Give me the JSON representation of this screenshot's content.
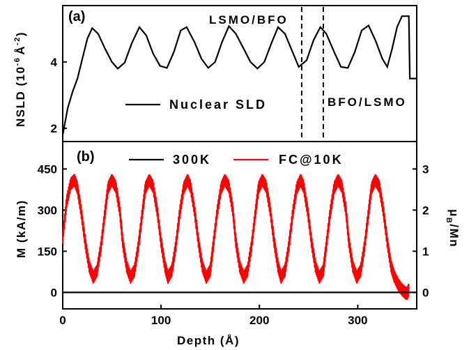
{
  "chart_data": [
    {
      "type": "line",
      "panel_label": "(a)",
      "ylabel": "NSLD (10",
      "ylabel_sup": "-6",
      "ylabel_unit": "Å",
      "ylabel_sup2": "-2",
      "ylabel_close": ")",
      "xlim": [
        0,
        360
      ],
      "ylim": [
        1.6,
        5.7
      ],
      "yticks": [
        "2",
        "4"
      ],
      "ytick_values": [
        2,
        4
      ],
      "legend_label": "Nuclear SLD",
      "annotations": [
        "LSMO/BFO",
        "BFO/LSMO"
      ],
      "interface_lines_x": [
        243,
        265
      ],
      "series": [
        {
          "name": "Nuclear SLD",
          "color": "#000000",
          "x": [
            0,
            5,
            10,
            15,
            20,
            25,
            30,
            36,
            43,
            50,
            56,
            63,
            70,
            78,
            85,
            92,
            99,
            106,
            113,
            120,
            126,
            134,
            141,
            148,
            155,
            162,
            169,
            176,
            184,
            191,
            198,
            205,
            212,
            219,
            226,
            233,
            240,
            248,
            255,
            262,
            268,
            276,
            283,
            290,
            297,
            304,
            311,
            318,
            325,
            330,
            335,
            340,
            345,
            352,
            353,
            354,
            360
          ],
          "y": [
            1.8,
            2.6,
            3.1,
            3.5,
            4.1,
            4.7,
            5.02,
            4.85,
            4.4,
            4.0,
            3.8,
            3.98,
            4.55,
            5.05,
            4.8,
            4.25,
            3.88,
            3.82,
            4.3,
            4.95,
            5.05,
            4.6,
            4.1,
            3.82,
            4.0,
            4.6,
            5.08,
            4.85,
            4.4,
            4.0,
            3.8,
            4.0,
            4.55,
            5.05,
            4.85,
            4.35,
            3.85,
            4.05,
            4.65,
            5.05,
            4.85,
            4.3,
            3.85,
            3.82,
            4.3,
            4.95,
            5.1,
            4.65,
            4.1,
            3.85,
            4.4,
            5.05,
            5.38,
            5.38,
            3.5,
            3.5,
            3.5
          ]
        }
      ]
    },
    {
      "type": "line",
      "panel_label": "(b)",
      "xlabel": "Depth (Å)",
      "ylabel": "M (kA/m)",
      "ylabel_right": "μB/Mn",
      "ylabel_right_main": "μ",
      "ylabel_right_sub": "B",
      "ylabel_right_rest": "/Mn",
      "xlim": [
        0,
        360
      ],
      "ylim": [
        -60,
        550
      ],
      "xticks": [
        "0",
        "100",
        "200",
        "300"
      ],
      "xtick_values": [
        0,
        100,
        200,
        300
      ],
      "yticks": [
        "0",
        "150",
        "300",
        "450"
      ],
      "ytick_values": [
        0,
        150,
        300,
        450
      ],
      "yticks_right": [
        "0",
        "1",
        "2",
        "3"
      ],
      "ytick_right_values": [
        0,
        150,
        300,
        450
      ],
      "series": [
        {
          "name": "300K",
          "color": "#000000",
          "x": [
            0,
            360
          ],
          "y": [
            0,
            0
          ]
        },
        {
          "name": "FC@10K",
          "color": "#ff0000",
          "x": [
            0,
            4,
            8,
            12,
            15,
            19,
            23,
            27,
            31,
            35,
            39,
            43,
            46,
            50,
            54,
            58,
            61,
            65,
            69,
            73,
            77,
            81,
            84,
            88,
            92,
            96,
            100,
            104,
            107,
            111,
            115,
            119,
            123,
            127,
            130,
            134,
            138,
            142,
            146,
            150,
            153,
            157,
            161,
            165,
            169,
            173,
            176,
            180,
            184,
            188,
            192,
            196,
            199,
            203,
            207,
            211,
            215,
            219,
            222,
            226,
            230,
            234,
            238,
            242,
            245,
            249,
            253,
            257,
            261,
            265,
            268,
            272,
            276,
            280,
            284,
            288,
            291,
            295,
            299,
            303,
            307,
            311,
            314,
            318,
            322,
            326,
            330,
            334,
            337,
            341,
            345,
            348,
            350,
            352
          ],
          "y": [
            200,
            330,
            395,
            410,
            380,
            290,
            180,
            95,
            55,
            80,
            170,
            290,
            380,
            410,
            385,
            300,
            185,
            95,
            55,
            80,
            170,
            290,
            380,
            410,
            385,
            300,
            185,
            95,
            55,
            80,
            170,
            290,
            380,
            410,
            385,
            300,
            185,
            95,
            55,
            80,
            170,
            290,
            380,
            410,
            385,
            300,
            185,
            95,
            55,
            80,
            170,
            290,
            380,
            410,
            385,
            300,
            185,
            95,
            55,
            80,
            170,
            290,
            380,
            410,
            385,
            300,
            185,
            95,
            55,
            80,
            170,
            290,
            380,
            410,
            385,
            300,
            185,
            95,
            55,
            80,
            170,
            290,
            380,
            410,
            385,
            300,
            185,
            95,
            60,
            30,
            10,
            0,
            -5,
            10
          ]
        }
      ]
    }
  ]
}
